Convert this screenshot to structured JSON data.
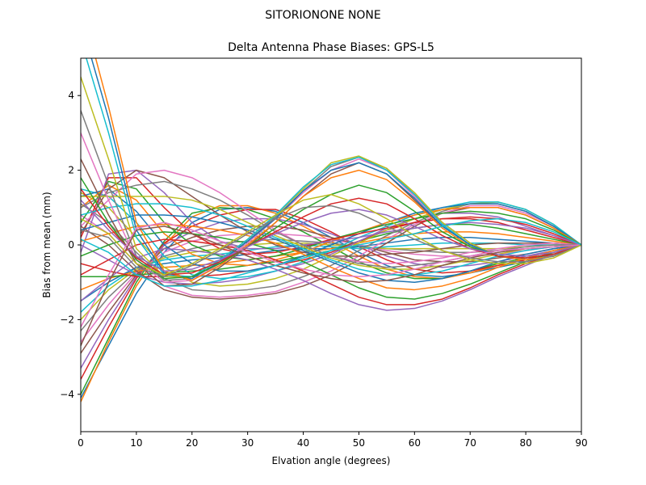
{
  "figure": {
    "suptitle": "SITORIONONE     NONE"
  },
  "chart_data": {
    "type": "line",
    "title": "Delta Antenna Phase Biases: GPS-L5",
    "xlabel": "Elvation angle (degrees)",
    "ylabel": "Bias from mean (mm)",
    "xlim": [
      0,
      90
    ],
    "ylim": [
      -5,
      5
    ],
    "xticks": [
      0,
      10,
      20,
      30,
      40,
      50,
      60,
      70,
      80,
      90
    ],
    "yticks": [
      -4,
      -2,
      0,
      2,
      4
    ],
    "grid": false,
    "x": [
      0,
      5,
      10,
      15,
      20,
      25,
      30,
      35,
      40,
      45,
      50,
      55,
      60,
      65,
      70,
      75,
      80,
      85,
      90
    ],
    "palette": [
      "#1f77b4",
      "#ff7f0e",
      "#2ca02c",
      "#d62728",
      "#9467bd",
      "#8c564b",
      "#e377c2",
      "#7f7f7f",
      "#bcbd22",
      "#17becf"
    ],
    "series": [
      {
        "values": [
          -4.1,
          -2.7,
          -1.3,
          -0.2,
          0.6,
          0.95,
          1.0,
          0.9,
          0.6,
          0.2,
          -0.2,
          -0.55,
          -0.8,
          -0.85,
          -0.75,
          -0.6,
          -0.45,
          -0.25,
          0
        ]
      },
      {
        "values": [
          -4.2,
          -2.6,
          -1.1,
          0.0,
          0.75,
          1.05,
          1.05,
          0.85,
          0.5,
          0.1,
          -0.3,
          -0.65,
          -0.85,
          -0.9,
          -0.75,
          -0.55,
          -0.4,
          -0.2,
          0
        ]
      },
      {
        "values": [
          -4.0,
          -2.5,
          -1.0,
          0.1,
          0.85,
          1.0,
          0.95,
          0.7,
          0.35,
          -0.05,
          -0.45,
          -0.75,
          -0.9,
          -0.9,
          -0.7,
          -0.5,
          -0.35,
          -0.15,
          0
        ]
      },
      {
        "values": [
          -3.6,
          -2.2,
          -0.9,
          0.05,
          0.5,
          0.8,
          0.95,
          0.95,
          0.7,
          0.35,
          -0.05,
          -0.4,
          -0.65,
          -0.75,
          -0.7,
          -0.55,
          -0.4,
          -0.2,
          0
        ]
      },
      {
        "values": [
          -3.3,
          -2.0,
          -0.85,
          0.0,
          0.35,
          0.6,
          0.7,
          0.7,
          0.55,
          0.3,
          0.0,
          -0.3,
          -0.5,
          -0.6,
          -0.55,
          -0.45,
          -0.3,
          -0.15,
          0
        ]
      },
      {
        "values": [
          -2.9,
          -1.8,
          -0.8,
          -0.1,
          0.2,
          0.4,
          0.5,
          0.5,
          0.4,
          0.2,
          0.0,
          -0.2,
          -0.4,
          -0.45,
          -0.45,
          -0.35,
          -0.25,
          -0.1,
          0
        ]
      },
      {
        "values": [
          -2.6,
          -1.6,
          -0.75,
          -0.2,
          0.1,
          0.25,
          0.3,
          0.3,
          0.25,
          0.15,
          0.0,
          -0.15,
          -0.25,
          -0.3,
          -0.3,
          -0.25,
          -0.15,
          -0.05,
          0
        ]
      },
      {
        "values": [
          -2.3,
          -1.4,
          -0.7,
          -0.3,
          -0.1,
          0.05,
          0.1,
          0.15,
          0.1,
          0.05,
          -0.05,
          -0.1,
          -0.15,
          -0.2,
          -0.2,
          -0.15,
          -0.1,
          -0.05,
          0
        ]
      },
      {
        "values": [
          -2.0,
          -1.2,
          -0.65,
          -0.35,
          -0.2,
          -0.1,
          0.0,
          0.05,
          0.05,
          0.0,
          -0.05,
          -0.1,
          -0.1,
          -0.1,
          -0.1,
          -0.1,
          -0.05,
          0.0,
          0
        ]
      },
      {
        "values": [
          -1.8,
          -1.1,
          -0.6,
          -0.4,
          -0.3,
          -0.25,
          -0.15,
          -0.05,
          0.0,
          -0.05,
          -0.1,
          -0.05,
          0.0,
          0.05,
          0.05,
          0.05,
          0.0,
          0.0,
          0
        ]
      },
      {
        "values": [
          -1.5,
          -1.0,
          -0.6,
          -0.5,
          -0.4,
          -0.35,
          -0.25,
          -0.15,
          -0.1,
          -0.1,
          -0.05,
          0.05,
          0.15,
          0.2,
          0.2,
          0.15,
          0.1,
          0.05,
          0
        ]
      },
      {
        "values": [
          -1.2,
          -0.9,
          -0.7,
          -0.6,
          -0.55,
          -0.5,
          -0.4,
          -0.3,
          -0.2,
          -0.1,
          0.05,
          0.2,
          0.3,
          0.35,
          0.35,
          0.3,
          0.2,
          0.1,
          0
        ]
      },
      {
        "values": [
          -0.85,
          -0.85,
          -0.8,
          -0.75,
          -0.7,
          -0.65,
          -0.55,
          -0.45,
          -0.3,
          -0.15,
          0.1,
          0.3,
          0.45,
          0.55,
          0.55,
          0.45,
          0.3,
          0.15,
          0
        ]
      },
      {
        "values": [
          -0.5,
          -0.7,
          -0.85,
          -0.85,
          -0.85,
          -0.8,
          -0.7,
          -0.55,
          -0.4,
          -0.2,
          0.1,
          0.4,
          0.6,
          0.7,
          0.7,
          0.6,
          0.4,
          0.2,
          0
        ]
      },
      {
        "values": [
          0.0,
          -0.4,
          -0.8,
          -1.0,
          -1.05,
          -1.0,
          -0.9,
          -0.7,
          -0.5,
          -0.25,
          0.1,
          0.45,
          0.7,
          0.85,
          0.85,
          0.75,
          0.5,
          0.25,
          0
        ]
      },
      {
        "values": [
          0.5,
          0.0,
          -0.7,
          -1.2,
          -1.4,
          -1.45,
          -1.4,
          -1.3,
          -1.1,
          -0.8,
          -0.4,
          0.05,
          0.5,
          0.85,
          1.0,
          1.0,
          0.8,
          0.45,
          0
        ]
      },
      {
        "values": [
          0.8,
          0.3,
          -0.5,
          -1.1,
          -1.35,
          -1.4,
          -1.35,
          -1.25,
          -1.0,
          -0.7,
          -0.3,
          0.15,
          0.55,
          0.85,
          1.05,
          1.05,
          0.85,
          0.5,
          0
        ]
      },
      {
        "values": [
          1.1,
          0.6,
          -0.2,
          -0.9,
          -1.2,
          -1.25,
          -1.2,
          -1.1,
          -0.85,
          -0.55,
          -0.15,
          0.25,
          0.6,
          0.9,
          1.1,
          1.1,
          0.9,
          0.5,
          0
        ]
      },
      {
        "values": [
          1.4,
          1.0,
          0.2,
          -0.6,
          -1.0,
          -1.1,
          -1.05,
          -0.9,
          -0.65,
          -0.3,
          0.05,
          0.4,
          0.7,
          0.95,
          1.1,
          1.15,
          0.95,
          0.55,
          0
        ]
      },
      {
        "values": [
          1.5,
          1.3,
          0.6,
          -0.3,
          -0.8,
          -0.9,
          -0.85,
          -0.7,
          -0.45,
          -0.15,
          0.2,
          0.5,
          0.8,
          1.0,
          1.15,
          1.15,
          0.95,
          0.55,
          0
        ]
      },
      {
        "values": [
          1.3,
          1.5,
          0.9,
          0.0,
          -0.5,
          -0.7,
          -0.7,
          -0.55,
          -0.3,
          0.0,
          0.3,
          0.6,
          0.85,
          1.0,
          1.1,
          1.1,
          0.9,
          0.5,
          0
        ]
      },
      {
        "values": [
          1.0,
          1.6,
          1.2,
          0.3,
          -0.25,
          -0.5,
          -0.55,
          -0.4,
          -0.2,
          0.1,
          0.35,
          0.6,
          0.8,
          0.95,
          1.0,
          1.0,
          0.8,
          0.45,
          0
        ]
      },
      {
        "values": [
          0.6,
          1.7,
          1.5,
          0.6,
          0.0,
          -0.3,
          -0.4,
          -0.3,
          -0.1,
          0.15,
          0.35,
          0.55,
          0.7,
          0.85,
          0.9,
          0.85,
          0.7,
          0.4,
          0
        ]
      },
      {
        "values": [
          0.2,
          1.8,
          1.8,
          1.0,
          0.3,
          -0.1,
          -0.25,
          -0.2,
          -0.05,
          0.15,
          0.3,
          0.45,
          0.6,
          0.7,
          0.75,
          0.7,
          0.55,
          0.3,
          0
        ]
      },
      {
        "values": [
          -0.2,
          1.9,
          2.0,
          1.4,
          0.6,
          0.1,
          -0.1,
          -0.1,
          0.0,
          0.1,
          0.2,
          0.35,
          0.45,
          0.55,
          0.6,
          0.55,
          0.45,
          0.25,
          0
        ]
      },
      {
        "values": [
          0.3,
          1.5,
          2.0,
          1.8,
          1.3,
          0.8,
          0.35,
          0.0,
          -0.2,
          -0.3,
          -0.3,
          -0.25,
          -0.2,
          -0.1,
          0.0,
          0.05,
          0.05,
          0.05,
          0
        ]
      },
      {
        "values": [
          0.5,
          1.2,
          1.9,
          2.0,
          1.8,
          1.4,
          0.9,
          0.4,
          0.0,
          -0.3,
          -0.45,
          -0.5,
          -0.45,
          -0.35,
          -0.2,
          -0.1,
          0.0,
          0.05,
          0
        ]
      },
      {
        "values": [
          1.0,
          1.4,
          1.6,
          1.7,
          1.5,
          1.2,
          0.8,
          0.35,
          0.0,
          -0.3,
          -0.5,
          -0.6,
          -0.55,
          -0.45,
          -0.3,
          -0.15,
          -0.05,
          0.0,
          0
        ]
      },
      {
        "values": [
          1.3,
          1.3,
          1.3,
          1.3,
          1.2,
          0.95,
          0.6,
          0.25,
          -0.05,
          -0.35,
          -0.55,
          -0.65,
          -0.65,
          -0.55,
          -0.4,
          -0.25,
          -0.1,
          -0.05,
          0
        ]
      },
      {
        "values": [
          0.8,
          1.0,
          1.1,
          1.1,
          1.0,
          0.8,
          0.5,
          0.2,
          -0.1,
          -0.4,
          -0.65,
          -0.8,
          -0.8,
          -0.7,
          -0.5,
          -0.3,
          -0.15,
          -0.05,
          0
        ]
      },
      {
        "values": [
          0.4,
          0.6,
          0.8,
          0.8,
          0.75,
          0.6,
          0.4,
          0.15,
          -0.15,
          -0.45,
          -0.75,
          -0.95,
          -1.0,
          -0.9,
          -0.7,
          -0.45,
          -0.25,
          -0.1,
          0
        ]
      },
      {
        "values": [
          0.1,
          0.3,
          0.5,
          0.55,
          0.5,
          0.4,
          0.25,
          0.05,
          -0.25,
          -0.6,
          -0.9,
          -1.15,
          -1.2,
          -1.1,
          -0.9,
          -0.6,
          -0.35,
          -0.15,
          0
        ]
      },
      {
        "values": [
          -0.3,
          0.0,
          0.25,
          0.35,
          0.3,
          0.2,
          0.05,
          -0.15,
          -0.45,
          -0.8,
          -1.15,
          -1.4,
          -1.45,
          -1.3,
          -1.05,
          -0.75,
          -0.45,
          -0.2,
          0
        ]
      },
      {
        "values": [
          -0.8,
          -0.4,
          0.0,
          0.15,
          0.1,
          0.0,
          -0.15,
          -0.4,
          -0.7,
          -1.05,
          -1.4,
          -1.6,
          -1.6,
          -1.45,
          -1.15,
          -0.8,
          -0.5,
          -0.25,
          0
        ]
      },
      {
        "values": [
          -1.5,
          -0.9,
          -0.35,
          -0.1,
          -0.15,
          -0.25,
          -0.4,
          -0.65,
          -0.95,
          -1.3,
          -1.6,
          -1.75,
          -1.7,
          -1.5,
          -1.2,
          -0.85,
          -0.55,
          -0.25,
          0
        ]
      },
      {
        "values": [
          2.3,
          0.8,
          -0.5,
          -1.1,
          -1.05,
          -0.6,
          -0.05,
          0.6,
          1.3,
          1.9,
          2.2,
          1.9,
          1.2,
          0.5,
          0.0,
          -0.3,
          -0.4,
          -0.3,
          0
        ]
      },
      {
        "values": [
          3.0,
          1.2,
          -0.4,
          -1.0,
          -0.95,
          -0.5,
          0.05,
          0.7,
          1.4,
          2.0,
          2.3,
          2.0,
          1.3,
          0.55,
          0.0,
          -0.3,
          -0.4,
          -0.3,
          0
        ]
      },
      {
        "values": [
          3.6,
          1.6,
          -0.3,
          -0.95,
          -0.9,
          -0.45,
          0.1,
          0.75,
          1.45,
          2.1,
          2.35,
          2.05,
          1.35,
          0.6,
          0.05,
          -0.3,
          -0.4,
          -0.3,
          0
        ]
      },
      {
        "values": [
          4.5,
          2.3,
          -0.1,
          -0.85,
          -0.85,
          -0.4,
          0.15,
          0.8,
          1.5,
          2.2,
          2.38,
          2.05,
          1.4,
          0.6,
          0.05,
          -0.3,
          -0.4,
          -0.3,
          0
        ]
      },
      {
        "values": [
          5.5,
          3.0,
          0.2,
          -0.8,
          -0.85,
          -0.4,
          0.15,
          0.8,
          1.55,
          2.15,
          2.35,
          2.0,
          1.35,
          0.55,
          0.0,
          -0.3,
          -0.4,
          -0.3,
          0
        ]
      },
      {
        "values": [
          6.0,
          3.4,
          0.4,
          -0.75,
          -0.9,
          -0.45,
          0.1,
          0.7,
          1.45,
          2.0,
          2.2,
          1.9,
          1.25,
          0.5,
          0.0,
          -0.3,
          -0.4,
          -0.3,
          0
        ]
      },
      {
        "values": [
          6.5,
          3.7,
          0.6,
          -0.7,
          -0.95,
          -0.55,
          0.0,
          0.6,
          1.3,
          1.8,
          2.0,
          1.75,
          1.15,
          0.45,
          -0.05,
          -0.3,
          -0.4,
          -0.3,
          0
        ]
      },
      {
        "values": [
          1.8,
          0.6,
          -0.4,
          -0.9,
          -0.85,
          -0.5,
          -0.05,
          0.45,
          0.95,
          1.35,
          1.6,
          1.4,
          0.9,
          0.35,
          -0.05,
          -0.3,
          -0.35,
          -0.25,
          0
        ]
      },
      {
        "values": [
          1.5,
          0.5,
          -0.35,
          -0.8,
          -0.75,
          -0.45,
          -0.05,
          0.35,
          0.75,
          1.1,
          1.25,
          1.1,
          0.7,
          0.25,
          -0.1,
          -0.3,
          -0.35,
          -0.25,
          0
        ]
      },
      {
        "values": [
          1.2,
          0.4,
          -0.3,
          -0.7,
          -0.65,
          -0.4,
          -0.05,
          0.3,
          0.6,
          0.85,
          0.95,
          0.8,
          0.5,
          0.15,
          -0.1,
          -0.25,
          -0.3,
          -0.2,
          0
        ]
      },
      {
        "values": [
          -2.7,
          -1.0,
          0.4,
          0.5,
          0.3,
          0.0,
          -0.3,
          -0.55,
          -0.75,
          -0.9,
          -1.0,
          -0.95,
          -0.8,
          -0.55,
          -0.35,
          -0.2,
          -0.1,
          -0.05,
          0
        ]
      },
      {
        "values": [
          -2.2,
          -0.8,
          0.45,
          0.6,
          0.4,
          0.1,
          -0.2,
          -0.45,
          -0.65,
          -0.8,
          -0.85,
          -0.8,
          -0.65,
          -0.45,
          -0.3,
          -0.15,
          -0.1,
          -0.05,
          0
        ]
      },
      {
        "values": [
          0.4,
          0.2,
          -0.6,
          -0.85,
          -0.55,
          -0.15,
          0.3,
          0.7,
          1.0,
          1.05,
          0.85,
          0.5,
          0.15,
          -0.15,
          -0.35,
          -0.45,
          -0.45,
          -0.3,
          0
        ]
      },
      {
        "values": [
          0.7,
          0.3,
          -0.5,
          -0.8,
          -0.5,
          -0.1,
          0.35,
          0.8,
          1.2,
          1.35,
          1.1,
          0.7,
          0.25,
          -0.15,
          -0.4,
          -0.5,
          -0.5,
          -0.35,
          0
        ]
      },
      {
        "values": [
          0.15,
          -0.2,
          -0.8,
          -1.1,
          -1.1,
          -0.95,
          -0.75,
          -0.55,
          -0.35,
          -0.15,
          0.0,
          0.15,
          0.3,
          0.5,
          0.65,
          0.7,
          0.6,
          0.35,
          0
        ]
      }
    ]
  }
}
